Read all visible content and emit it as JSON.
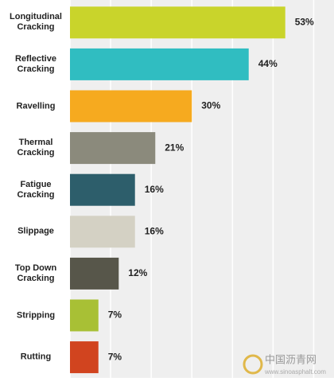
{
  "chart_data": {
    "type": "barh",
    "categories": [
      "Longitudinal Cracking",
      "Reflective Cracking",
      "Ravelling",
      "Thermal Cracking",
      "Fatigue Cracking",
      "Slippage",
      "Top Down Cracking",
      "Stripping",
      "Rutting"
    ],
    "values": [
      53,
      44,
      30,
      21,
      16,
      16,
      12,
      7,
      7
    ],
    "value_labels": [
      "53%",
      "44%",
      "30%",
      "21%",
      "16%",
      "16%",
      "12%",
      "7%",
      "7%"
    ],
    "colors": [
      "#c9d42b",
      "#30bdc1",
      "#f6aa1f",
      "#8b8a7c",
      "#2d5e6b",
      "#d4d1c4",
      "#57564a",
      "#a8c035",
      "#d1441f"
    ],
    "xlim": [
      0,
      65
    ],
    "xticks": [
      0,
      10,
      20,
      30,
      40,
      50,
      60
    ],
    "grid": true,
    "watermark": {
      "name": "中国沥青网",
      "url": "www.sinoasphalt.com"
    }
  }
}
